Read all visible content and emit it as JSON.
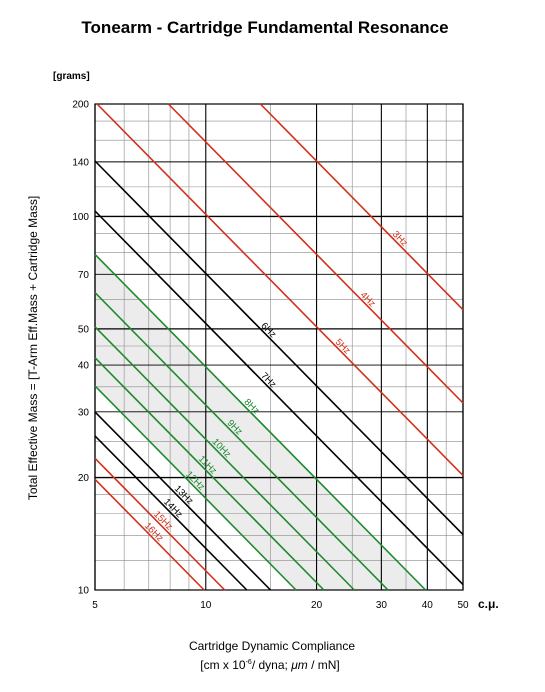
{
  "chart_data": {
    "type": "line",
    "title": "Tonearm - Cartridge Fundamental Resonance",
    "ylabel": "Total Effective Mass = [T-Arm Eff.Mass + Cartridge Mass]",
    "y_unit": "[grams]",
    "xlabel_line1": "Cartridge Dynamic Compliance",
    "xlabel_line2_parts": [
      "[cm x 10",
      "-6",
      "/ dyna; ",
      "μm",
      " / mN]"
    ],
    "x_unit": "c.μ.",
    "xscale": "log",
    "yscale": "log",
    "xlim": [
      5,
      50
    ],
    "ylim": [
      10,
      200
    ],
    "x_ticks": [
      "5",
      "10",
      "20",
      "30",
      "40",
      "50"
    ],
    "y_ticks": [
      "200",
      "140",
      "100",
      "70",
      "50",
      "40",
      "30",
      "20",
      "10"
    ],
    "grid": true,
    "recommended_band": "8–12 Hz region shaded",
    "series": [
      {
        "name": "3Hz",
        "hz": 3,
        "color": "#d2301a"
      },
      {
        "name": "4Hz",
        "hz": 4,
        "color": "#d2301a"
      },
      {
        "name": "5Hz",
        "hz": 5,
        "color": "#d2301a"
      },
      {
        "name": "6Hz",
        "hz": 6,
        "color": "#000000"
      },
      {
        "name": "7Hz",
        "hz": 7,
        "color": "#000000"
      },
      {
        "name": "8Hz",
        "hz": 8,
        "color": "#1e8a2e"
      },
      {
        "name": "9Hz",
        "hz": 9,
        "color": "#1e8a2e"
      },
      {
        "name": "10Hz",
        "hz": 10,
        "color": "#1e8a2e"
      },
      {
        "name": "11Hz",
        "hz": 11,
        "color": "#1e8a2e"
      },
      {
        "name": "12Hz",
        "hz": 12,
        "color": "#1e8a2e"
      },
      {
        "name": "13Hz",
        "hz": 13,
        "color": "#000000"
      },
      {
        "name": "14Hz",
        "hz": 14,
        "color": "#000000"
      },
      {
        "name": "15Hz",
        "hz": 15,
        "color": "#d2301a"
      },
      {
        "name": "16Hz",
        "hz": 16,
        "color": "#d2301a"
      }
    ],
    "colors": {
      "red": "#d2301a",
      "green": "#1e8a2e",
      "black": "#000000",
      "band": "#ececec"
    }
  }
}
